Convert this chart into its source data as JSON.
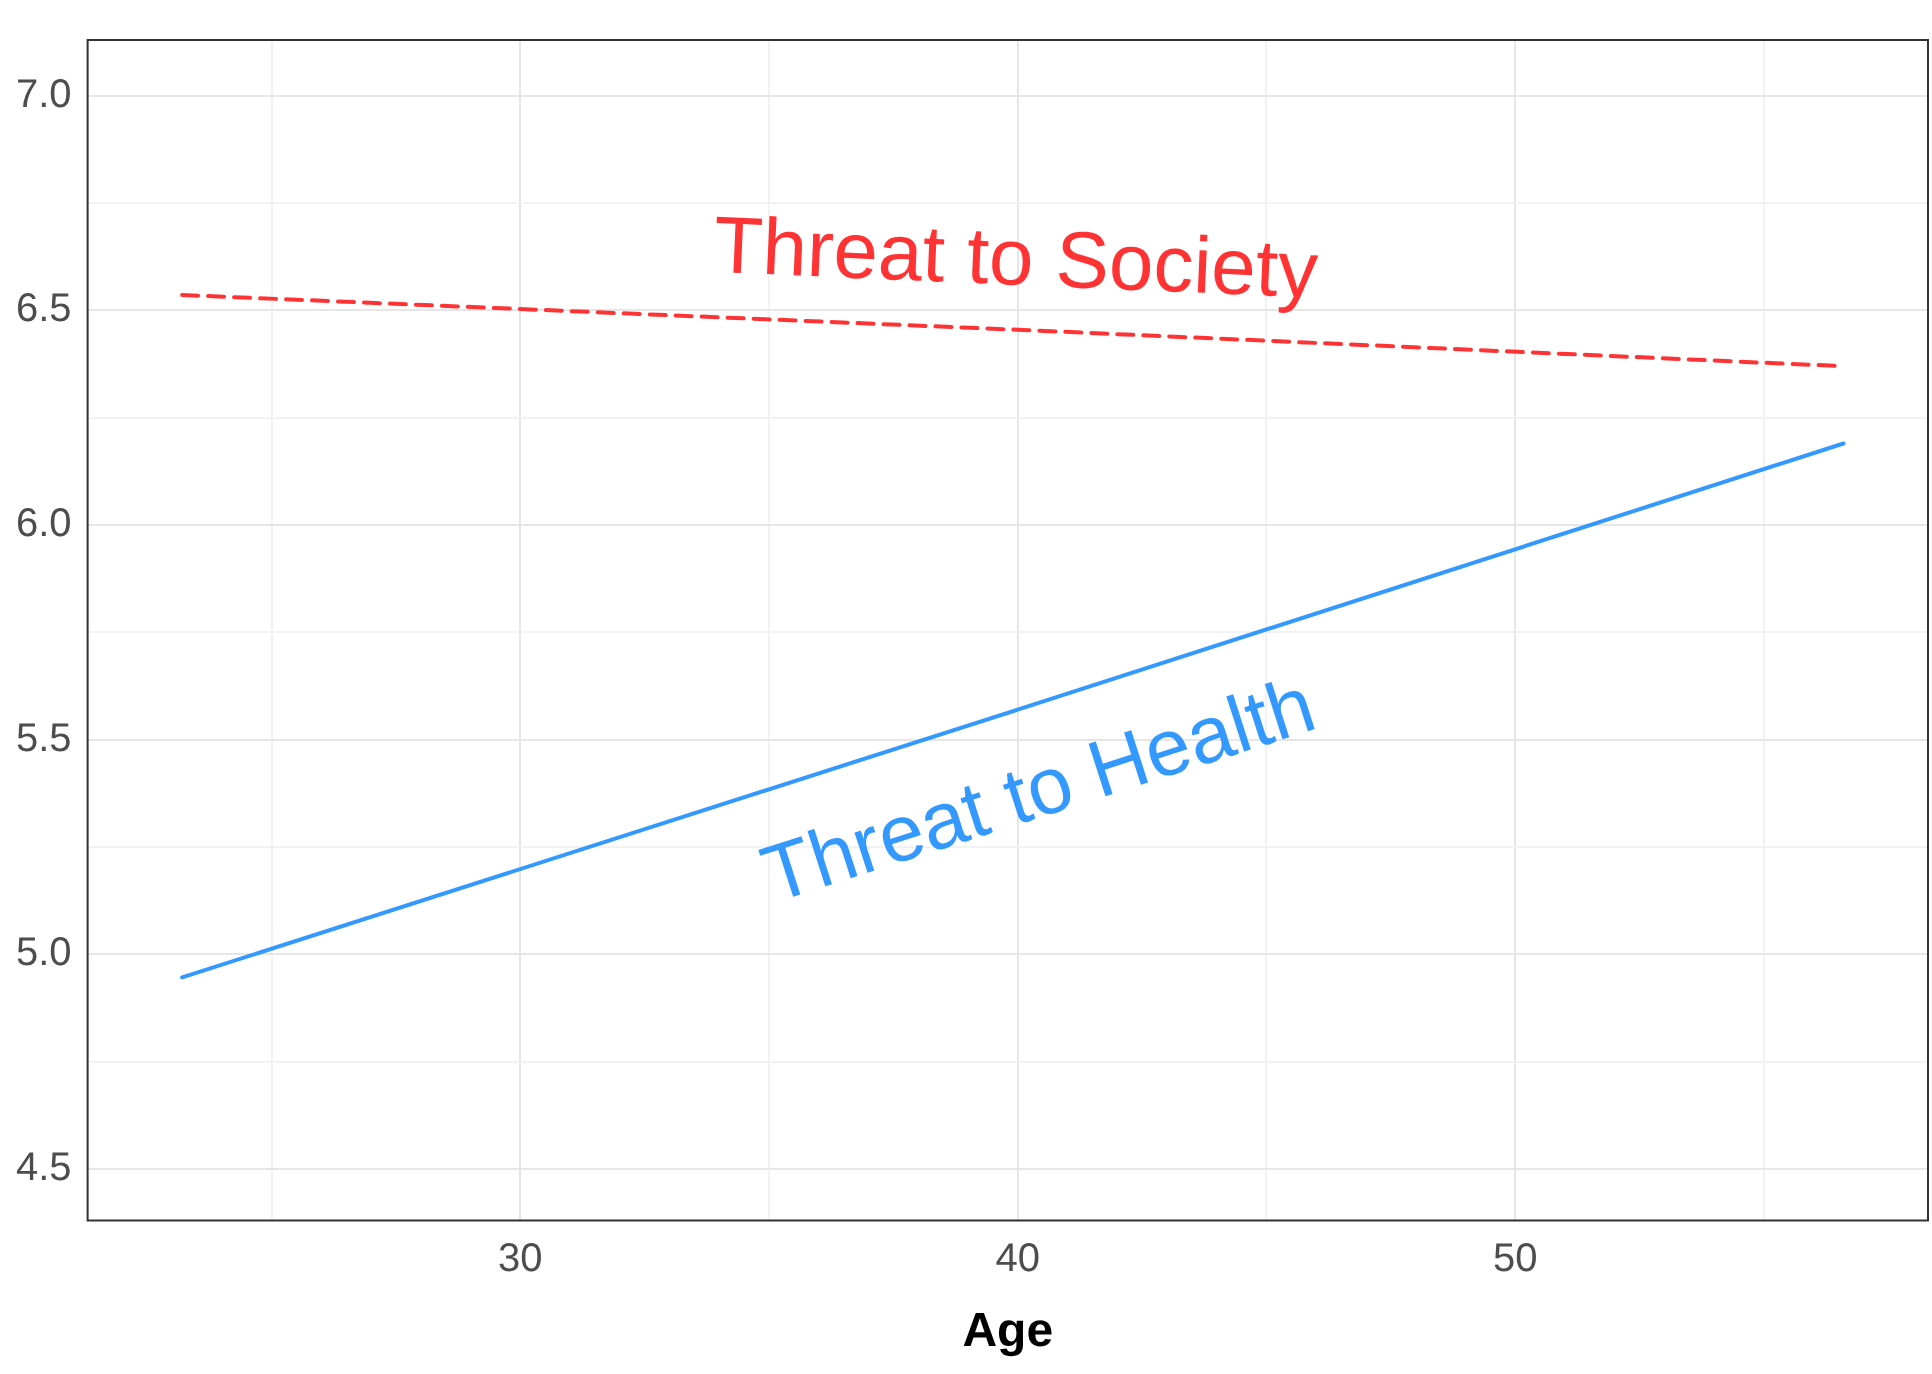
{
  "chart_data": {
    "type": "line",
    "xlabel": "Age",
    "xlim": [
      21.3,
      58.3
    ],
    "ylim": [
      4.38,
      7.13
    ],
    "xticks": [
      {
        "value": 25,
        "label": null
      },
      30,
      {
        "value": 35,
        "label": null
      },
      40,
      {
        "value": 45,
        "label": null
      },
      50,
      {
        "value": 55,
        "label": null
      }
    ],
    "yticks": [
      4.5,
      {
        "value": 4.75,
        "label": null
      },
      {
        "value": 5,
        "label": "5.0"
      },
      {
        "value": 5.25,
        "label": null
      },
      5.5,
      {
        "value": 5.75,
        "label": null
      },
      {
        "value": 6,
        "label": "6.0"
      },
      {
        "value": 6.25,
        "label": null
      },
      6.5,
      {
        "value": 6.75,
        "label": null
      },
      {
        "value": 7,
        "label": "7.0"
      }
    ],
    "grid": true,
    "legend": false,
    "marker": "none",
    "series": [
      {
        "name": "Threat to Society",
        "color": "#ff3333",
        "line_style": "dashed",
        "x": [
          23.2,
          40,
          56.6
        ],
        "values": [
          6.536,
          6.455,
          6.37
        ]
      },
      {
        "name": "Threat to Health",
        "color": "#3399ff",
        "line_style": "solid",
        "x": [
          23.2,
          40,
          56.6
        ],
        "values": [
          4.946,
          5.57,
          6.19
        ]
      }
    ]
  }
}
